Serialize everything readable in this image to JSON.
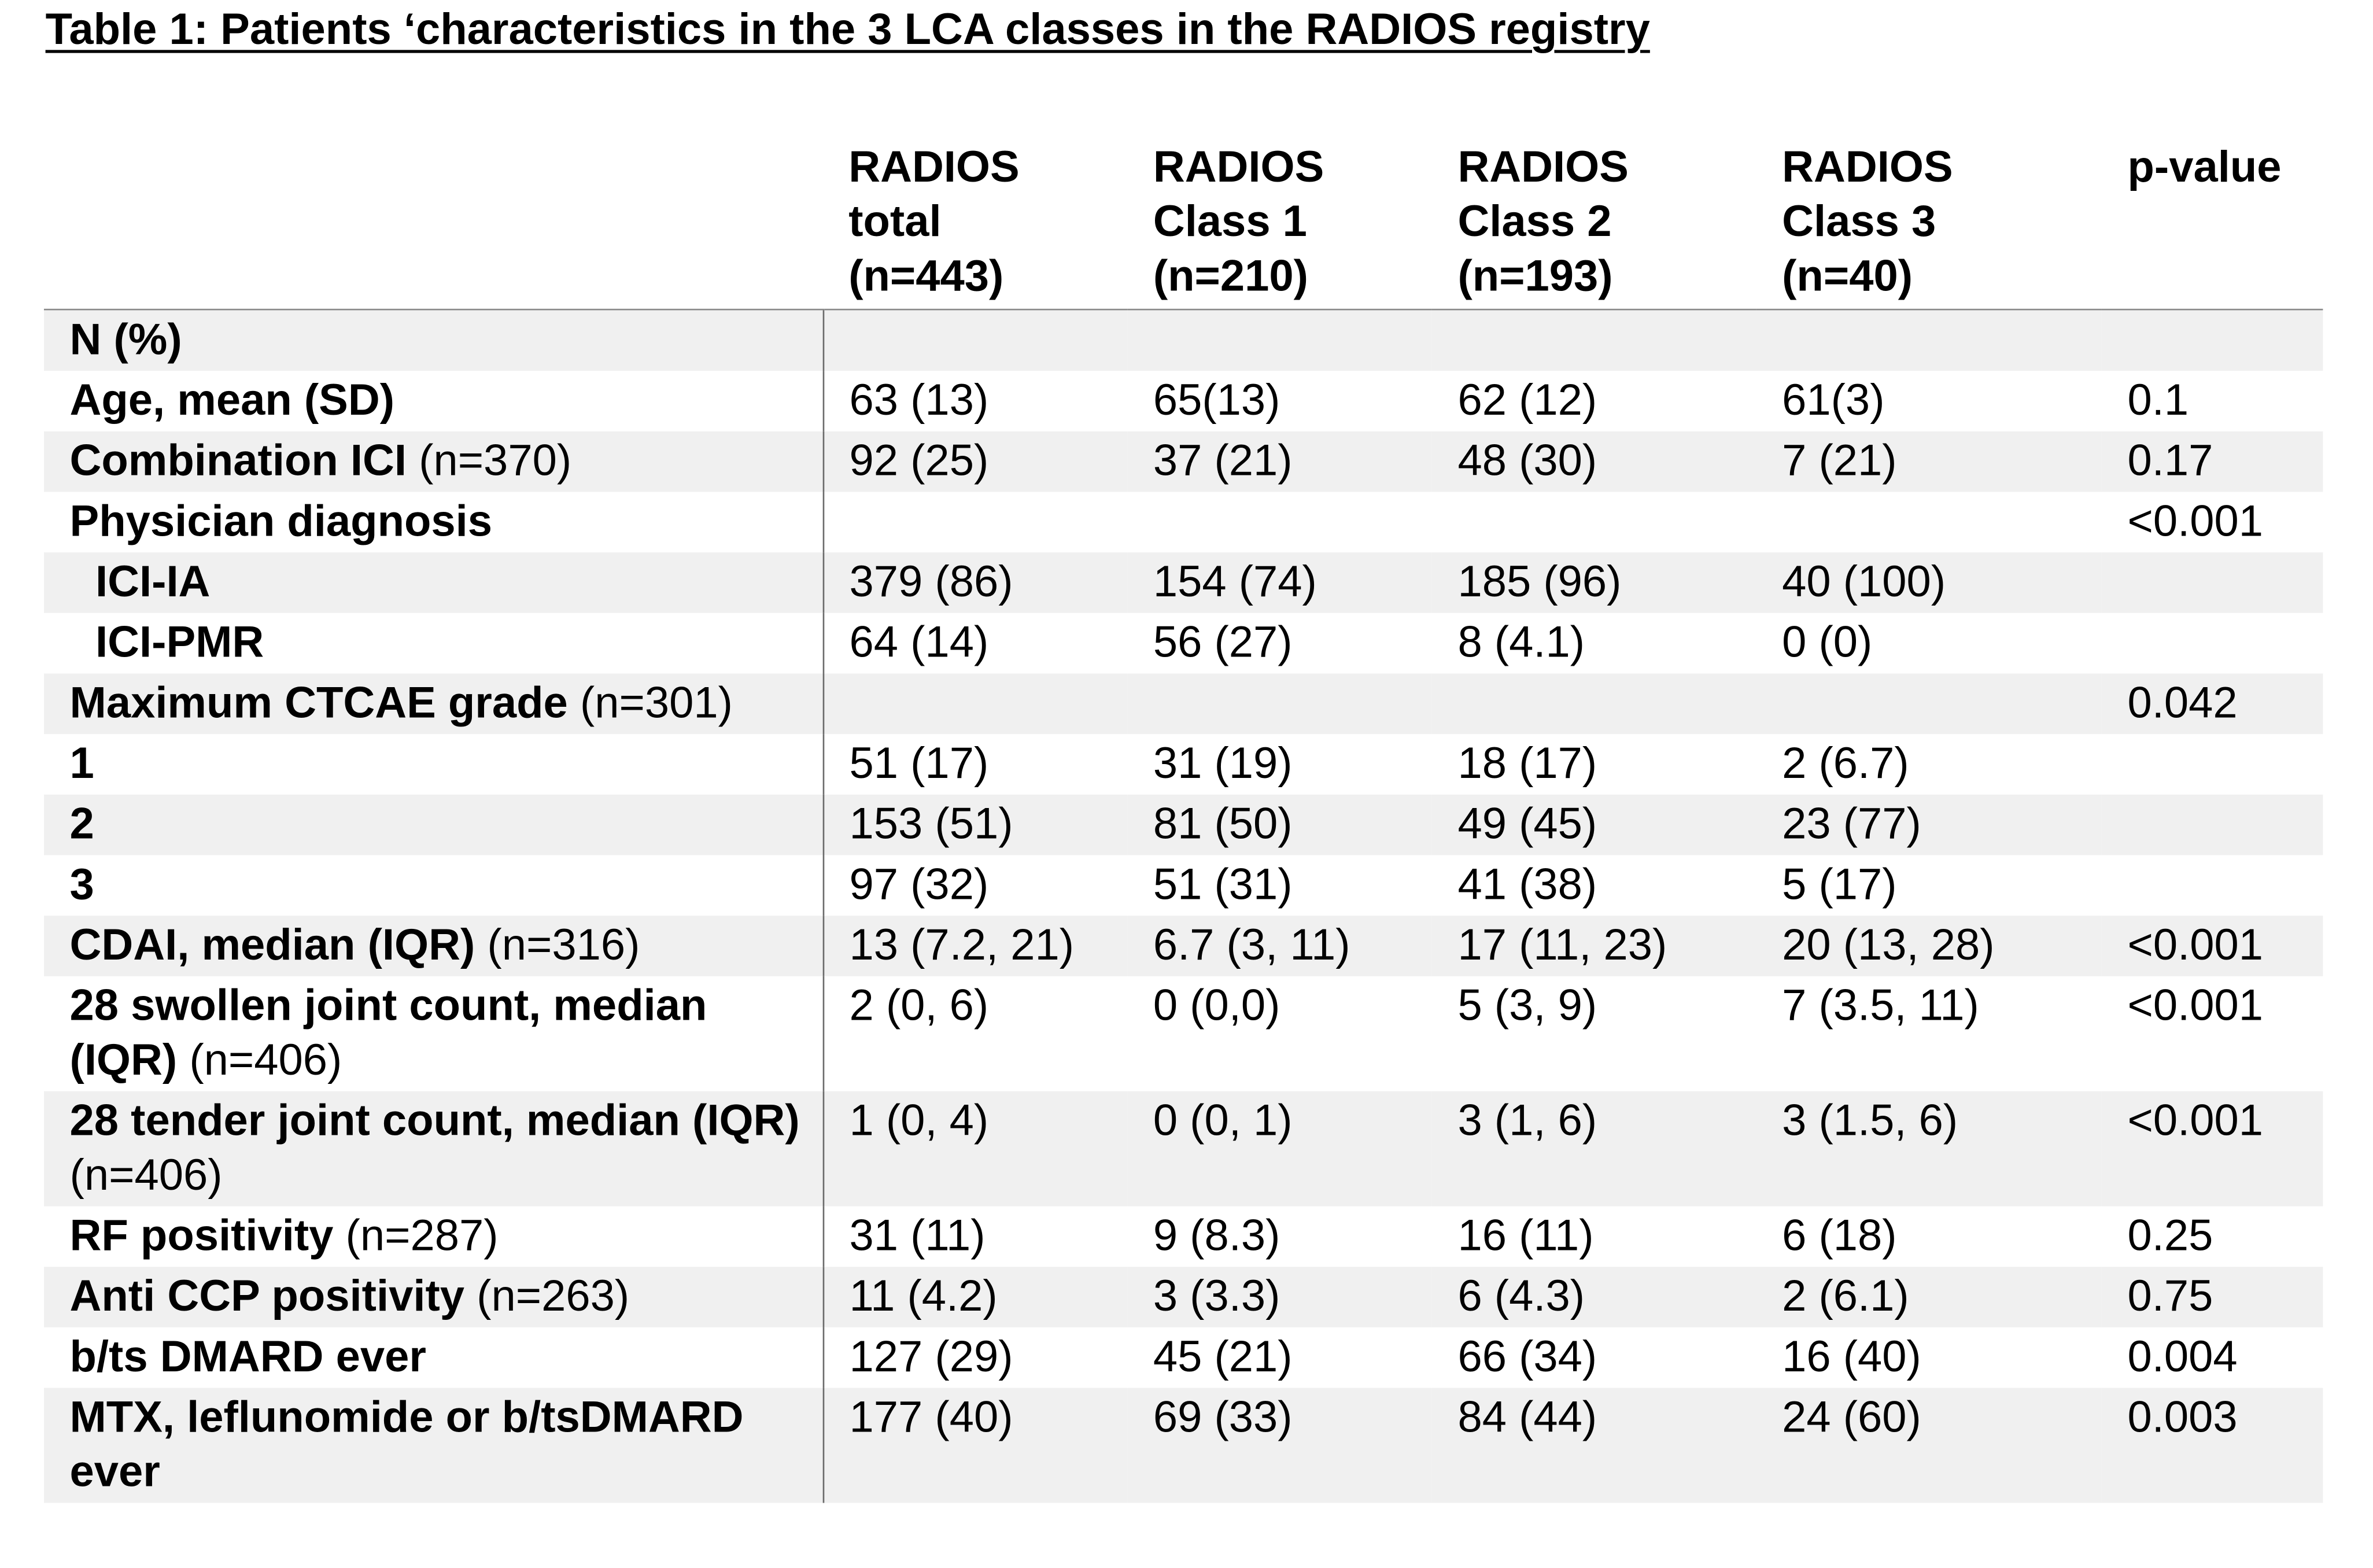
{
  "title": "Table 1: Patients ‘characteristics in the 3 LCA classes in the RADIOS registry",
  "columns": [
    {
      "line1": "RADIOS",
      "line2": "total",
      "line3": "(n=443)"
    },
    {
      "line1": "RADIOS",
      "line2": "Class 1",
      "line3": "(n=210)"
    },
    {
      "line1": "RADIOS",
      "line2": "Class 2",
      "line3": "(n=193)"
    },
    {
      "line1": "RADIOS",
      "line2": "Class 3",
      "line3": "(n=40)"
    },
    {
      "line1": "p-value",
      "line2": "",
      "line3": ""
    }
  ],
  "rows": [
    {
      "bold": "N (%)",
      "normal": "",
      "values": [
        "",
        "",
        "",
        "",
        ""
      ]
    },
    {
      "bold": "Age, mean (SD)",
      "normal": "",
      "values": [
        "63 (13)",
        "65(13)",
        "62 (12)",
        "61(3)",
        "0.1"
      ]
    },
    {
      "bold": "Combination ICI",
      "normal": " (n=370)",
      "values": [
        "92 (25)",
        "37 (21)",
        "48 (30)",
        "7 (21)",
        "0.17"
      ]
    },
    {
      "bold": "Physician diagnosis",
      "normal": "",
      "values": [
        "",
        "",
        "",
        "",
        "<0.001"
      ]
    },
    {
      "bold": "ICI-IA",
      "normal": "",
      "values": [
        "379 (86)",
        "154 (74)",
        "185 (96)",
        "40 (100)",
        ""
      ]
    },
    {
      "bold": "ICI-PMR",
      "normal": "",
      "values": [
        "64 (14)",
        "56 (27)",
        "8 (4.1)",
        "0 (0)",
        ""
      ]
    },
    {
      "bold": "Maximum CTCAE grade",
      "normal": " (n=301)",
      "values": [
        "",
        "",
        "",
        "",
        "0.042"
      ]
    },
    {
      "bold": "1",
      "normal": "",
      "values": [
        "51 (17)",
        "31 (19)",
        "18 (17)",
        "2 (6.7)",
        ""
      ]
    },
    {
      "bold": "2",
      "normal": "",
      "values": [
        "153 (51)",
        "81 (50)",
        "49 (45)",
        "23 (77)",
        ""
      ]
    },
    {
      "bold": "3",
      "normal": "",
      "values": [
        "97 (32)",
        "51 (31)",
        "41 (38)",
        "5 (17)",
        ""
      ]
    },
    {
      "bold": "CDAI, median (IQR)",
      "normal": " (n=316)",
      "values": [
        "13 (7.2, 21)",
        "6.7 (3, 11)",
        "17 (11, 23)",
        "20 (13, 28)",
        "<0.001"
      ]
    },
    {
      "bold": "28 swollen joint count, median (IQR)",
      "normal": " (n=406)",
      "values": [
        "2 (0, 6)",
        "0 (0,0)",
        "5 (3, 9)",
        "7 (3.5, 11)",
        "<0.001"
      ]
    },
    {
      "bold": "28 tender joint count, median (IQR)",
      "normal": " (n=406)",
      "values": [
        "1 (0, 4)",
        "0 (0, 1)",
        "3 (1, 6)",
        "3 (1.5, 6)",
        "<0.001"
      ]
    },
    {
      "bold": "RF positivity",
      "normal": " (n=287)",
      "values": [
        "31 (11)",
        "9 (8.3)",
        "16 (11)",
        "6 (18)",
        "0.25"
      ]
    },
    {
      "bold": "Anti CCP positivity",
      "normal": " (n=263)",
      "values": [
        "11 (4.2)",
        "3 (3.3)",
        "6 (4.3)",
        "2 (6.1)",
        "0.75"
      ]
    },
    {
      "bold": "b/ts DMARD ever",
      "normal": "",
      "values": [
        "127 (29)",
        "45 (21)",
        "66 (34)",
        "16 (40)",
        "0.004"
      ]
    },
    {
      "bold": "MTX, leflunomide or b/tsDMARD ever",
      "normal": "",
      "values": [
        "177 (40)",
        "69 (33)",
        "84 (44)",
        "24 (60)",
        "0.003"
      ]
    }
  ]
}
